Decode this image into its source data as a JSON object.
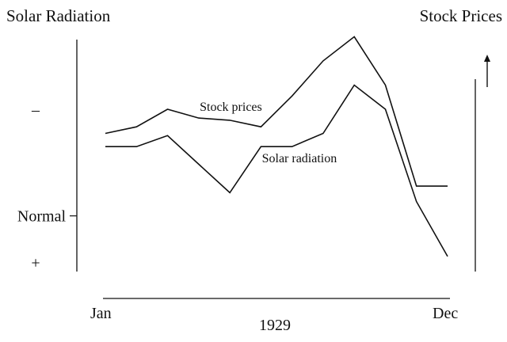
{
  "chart_data": {
    "type": "line",
    "left_axis_label": "Solar Radiation",
    "right_axis_label": "Stock Prices",
    "right_axis_arrow": "up-arrow",
    "xlabel": "1929",
    "x_tick_labels": {
      "start": "Jan",
      "end": "Dec"
    },
    "left_axis_marks": [
      {
        "text": "–",
        "level": 0.7
      },
      {
        "text": "Normal",
        "level": 0.24
      },
      {
        "text": "+",
        "level": 0.04
      }
    ],
    "x": [
      1,
      2,
      3,
      4,
      5,
      6,
      7,
      8,
      9,
      10,
      11,
      12
    ],
    "series": [
      {
        "name": "Stock prices",
        "values": [
          69,
          72,
          80,
          76,
          75,
          72,
          86,
          102,
          113,
          91,
          45,
          45
        ]
      },
      {
        "name": "Solar radiation",
        "values": [
          63,
          63,
          68,
          55,
          42,
          63,
          63,
          69,
          91,
          80,
          38,
          13
        ]
      }
    ],
    "ylim": [
      0,
      120
    ],
    "y_ticks_shown": false,
    "grid": false,
    "legend": "inline labels",
    "colors": {
      "ink": "#111111",
      "background": "#ffffff"
    }
  }
}
